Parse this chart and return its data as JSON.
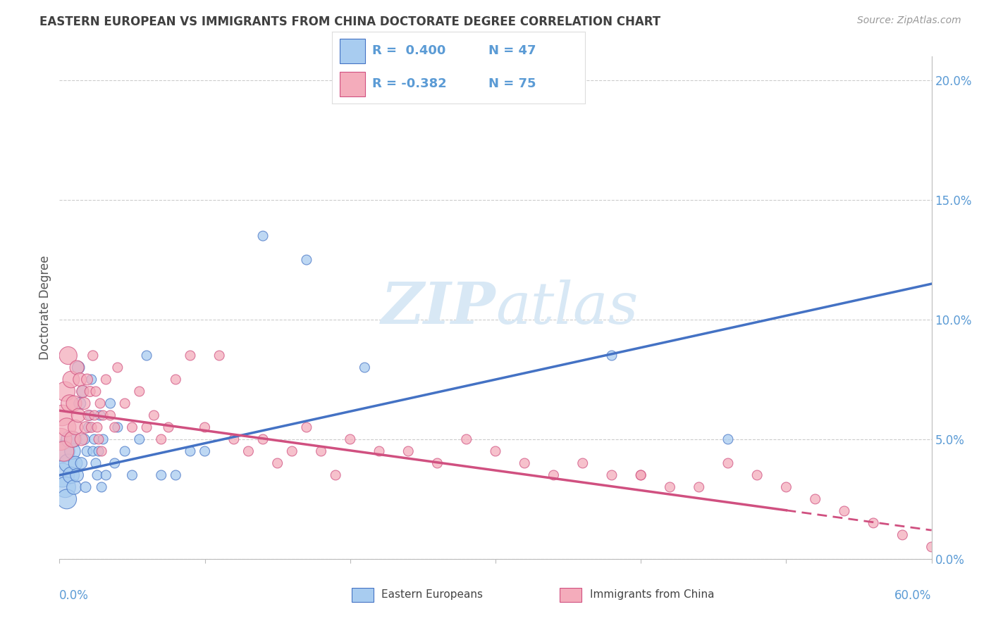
{
  "title": "EASTERN EUROPEAN VS IMMIGRANTS FROM CHINA DOCTORATE DEGREE CORRELATION CHART",
  "source": "Source: ZipAtlas.com",
  "ylabel": "Doctorate Degree",
  "right_yvalues": [
    0.0,
    5.0,
    10.0,
    15.0,
    20.0
  ],
  "blue_R": "0.400",
  "blue_N": "47",
  "pink_R": "-0.382",
  "pink_N": "75",
  "blue_color": "#A8CCF0",
  "blue_edge_color": "#4472C4",
  "pink_color": "#F4ACBB",
  "pink_edge_color": "#D05080",
  "blue_line_color": "#4472C4",
  "pink_line_color": "#D05080",
  "watermark": "ZIPatlas",
  "watermark_color": "#D8E8F5",
  "legend_label_blue": "Eastern Europeans",
  "legend_label_pink": "Immigrants from China",
  "blue_scatter_x": [
    0.2,
    0.3,
    0.4,
    0.5,
    0.6,
    0.7,
    0.8,
    0.9,
    1.0,
    1.0,
    1.1,
    1.2,
    1.3,
    1.4,
    1.5,
    1.6,
    1.7,
    1.8,
    1.9,
    2.0,
    2.1,
    2.2,
    2.3,
    2.4,
    2.5,
    2.6,
    2.7,
    2.8,
    2.9,
    3.0,
    3.2,
    3.5,
    3.8,
    4.0,
    4.5,
    5.0,
    5.5,
    6.0,
    7.0,
    8.0,
    9.0,
    10.0,
    14.0,
    17.0,
    21.0,
    38.0,
    46.0
  ],
  "blue_scatter_y": [
    3.5,
    4.5,
    3.0,
    2.5,
    4.0,
    5.0,
    3.5,
    4.5,
    5.0,
    3.0,
    4.0,
    3.5,
    8.0,
    6.5,
    4.0,
    7.0,
    5.0,
    3.0,
    4.5,
    5.5,
    6.0,
    7.5,
    4.5,
    5.0,
    4.0,
    3.5,
    4.5,
    6.0,
    3.0,
    5.0,
    3.5,
    6.5,
    4.0,
    5.5,
    4.5,
    3.5,
    5.0,
    8.5,
    3.5,
    3.5,
    4.5,
    4.5,
    13.5,
    12.5,
    8.0,
    8.5,
    5.0
  ],
  "blue_scatter_size": [
    600,
    500,
    450,
    400,
    350,
    300,
    280,
    260,
    240,
    220,
    200,
    180,
    160,
    150,
    140,
    130,
    120,
    115,
    110,
    105,
    100,
    100,
    100,
    100,
    100,
    100,
    100,
    100,
    100,
    100,
    100,
    100,
    100,
    100,
    100,
    100,
    100,
    100,
    100,
    100,
    100,
    100,
    100,
    100,
    100,
    100,
    100
  ],
  "pink_scatter_x": [
    0.1,
    0.2,
    0.3,
    0.4,
    0.5,
    0.6,
    0.7,
    0.8,
    0.9,
    1.0,
    1.1,
    1.2,
    1.3,
    1.4,
    1.5,
    1.6,
    1.7,
    1.8,
    1.9,
    2.0,
    2.1,
    2.2,
    2.3,
    2.4,
    2.5,
    2.6,
    2.7,
    2.8,
    2.9,
    3.0,
    3.2,
    3.5,
    3.8,
    4.0,
    4.5,
    5.0,
    5.5,
    6.0,
    6.5,
    7.0,
    7.5,
    8.0,
    9.0,
    10.0,
    11.0,
    12.0,
    13.0,
    14.0,
    15.0,
    16.0,
    17.0,
    18.0,
    19.0,
    20.0,
    22.0,
    24.0,
    26.0,
    28.0,
    30.0,
    32.0,
    34.0,
    36.0,
    38.0,
    40.0,
    42.0,
    44.0,
    46.0,
    48.0,
    50.0,
    52.0,
    54.0,
    56.0,
    58.0,
    60.0,
    40.0
  ],
  "pink_scatter_y": [
    5.0,
    6.0,
    4.5,
    7.0,
    5.5,
    8.5,
    6.5,
    7.5,
    5.0,
    6.5,
    5.5,
    8.0,
    6.0,
    7.5,
    5.0,
    7.0,
    6.5,
    5.5,
    7.5,
    6.0,
    7.0,
    5.5,
    8.5,
    6.0,
    7.0,
    5.5,
    5.0,
    6.5,
    4.5,
    6.0,
    7.5,
    6.0,
    5.5,
    8.0,
    6.5,
    5.5,
    7.0,
    5.5,
    6.0,
    5.0,
    5.5,
    7.5,
    8.5,
    5.5,
    8.5,
    5.0,
    4.5,
    5.0,
    4.0,
    4.5,
    5.5,
    4.5,
    3.5,
    5.0,
    4.5,
    4.5,
    4.0,
    5.0,
    4.5,
    4.0,
    3.5,
    4.0,
    3.5,
    3.5,
    3.0,
    3.0,
    4.0,
    3.5,
    3.0,
    2.5,
    2.0,
    1.5,
    1.0,
    0.5,
    3.5
  ],
  "pink_scatter_size": [
    500,
    450,
    420,
    400,
    360,
    330,
    310,
    290,
    270,
    250,
    230,
    210,
    200,
    185,
    170,
    160,
    150,
    140,
    130,
    120,
    115,
    110,
    105,
    100,
    100,
    100,
    100,
    100,
    100,
    100,
    100,
    100,
    100,
    100,
    100,
    100,
    100,
    100,
    100,
    100,
    100,
    100,
    100,
    100,
    100,
    100,
    100,
    100,
    100,
    100,
    100,
    100,
    100,
    100,
    100,
    100,
    100,
    100,
    100,
    100,
    100,
    100,
    100,
    100,
    100,
    100,
    100,
    100,
    100,
    100,
    100,
    100,
    100,
    100,
    100
  ],
  "xlim": [
    0,
    60
  ],
  "ylim": [
    0,
    21
  ],
  "blue_trend_x": [
    0,
    60
  ],
  "blue_trend_y": [
    3.5,
    11.5
  ],
  "pink_trend_x": [
    0,
    60
  ],
  "pink_trend_y": [
    6.2,
    1.2
  ],
  "pink_solid_end_x": 50,
  "grid_color": "#CCCCCC",
  "bg_color": "#FFFFFF",
  "title_color": "#404040",
  "axis_tick_color": "#5B9BD5",
  "legend_text_color": "#5B9BD5"
}
